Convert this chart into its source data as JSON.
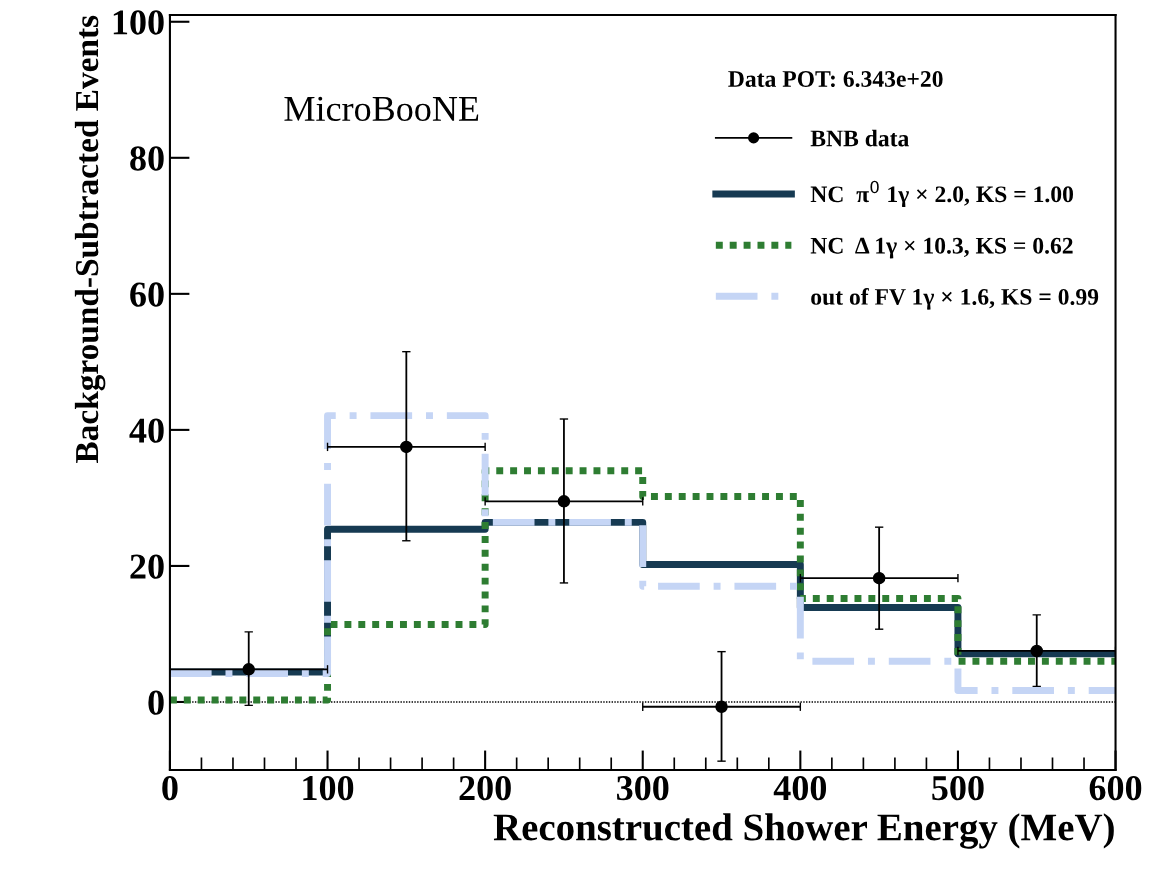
{
  "chart_data": {
    "type": "step",
    "xlabel": "Reconstructed Shower Energy (MeV)",
    "ylabel": "Background-Subtracted Events",
    "series": [
      {
        "name": "BNB data",
        "type": "scatter",
        "color": "#000000",
        "marker": "circle",
        "x": [
          50,
          150,
          250,
          350,
          450,
          550
        ],
        "values": [
          4.8,
          37.5,
          29.5,
          -0.7,
          18.2,
          7.5
        ],
        "errors": [
          [
            -0.5,
            10.3
          ],
          [
            23.7,
            51.5
          ],
          [
            17.5,
            41.6
          ],
          [
            -8.7,
            7.4
          ],
          [
            10.7,
            25.7
          ],
          [
            2.3,
            12.8
          ]
        ],
        "xerrors": [
          50,
          50,
          50,
          50,
          50,
          50
        ]
      },
      {
        "name": "NC  π$^{0}$ 1γ × 2.0, KS = 1.00",
        "color": "#163a52",
        "line_style": "solid",
        "x": [
          0,
          100,
          200,
          300,
          400,
          500,
          600
        ],
        "values": [
          4.4,
          25.4,
          26.4,
          20.2,
          13.9,
          7.1,
          7.1
        ]
      },
      {
        "name": "NC  Δ 1γ × 10.3, KS = 0.62",
        "color": "#2e7d32",
        "line_style": "dotted",
        "x": [
          0,
          100,
          200,
          300,
          400,
          500,
          600
        ],
        "values": [
          0.3,
          11.4,
          34.0,
          30.2,
          15.2,
          6.0,
          6.0
        ]
      },
      {
        "name": "out of FV 1γ × 1.6, KS = 0.99",
        "color": "#c5d5f5",
        "line_style": "dashed",
        "x": [
          0,
          100,
          200,
          300,
          400,
          500,
          600
        ],
        "values": [
          4.2,
          42.1,
          26.4,
          17.0,
          6.0,
          1.7,
          1.7
        ]
      }
    ],
    "xlim": [
      0,
      600
    ],
    "xticks": [
      0,
      100,
      200,
      300,
      400,
      500,
      600
    ],
    "ylim": [
      -10,
      101
    ],
    "yticks": [
      0,
      20,
      40,
      60,
      80,
      100
    ],
    "ref_lines": [
      {
        "axis": "y",
        "value": 0,
        "color": "#000000",
        "line_style": "dotted"
      }
    ],
    "annotations": [
      "MicroBooNE",
      "Data POT: 6.343e+20"
    ],
    "legend": "top right",
    "grid": false
  }
}
